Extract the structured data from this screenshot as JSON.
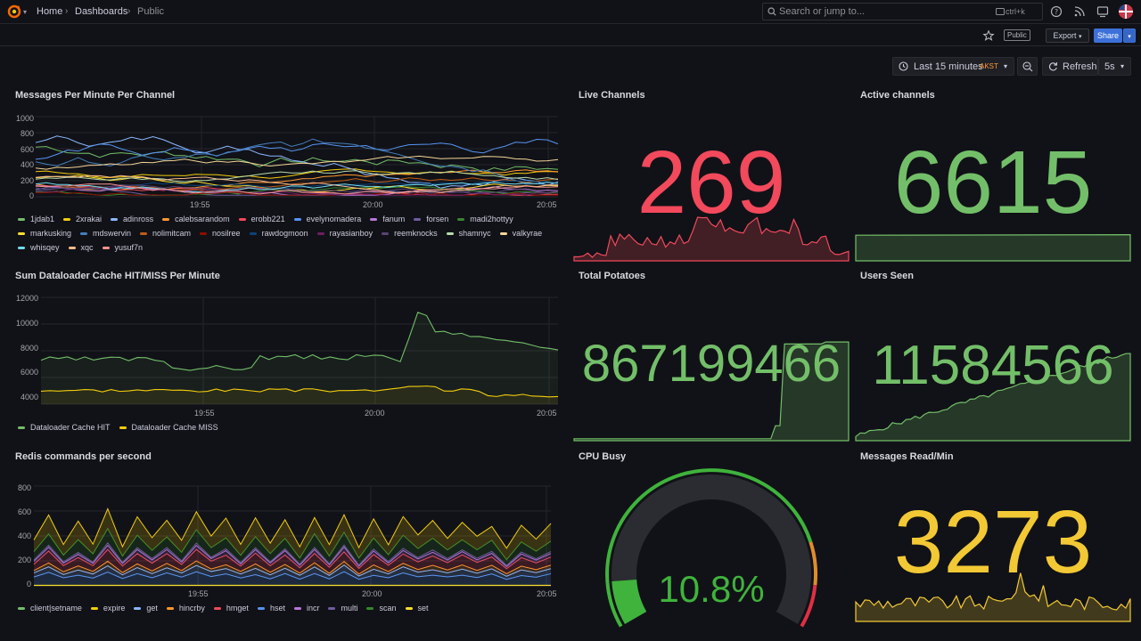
{
  "nav": {
    "crumbs": [
      "Home",
      "Dashboards",
      "Public"
    ],
    "search_placeholder": "Search or jump to...",
    "search_shortcut": "ctrl+k"
  },
  "toolbar": {
    "public_badge": "Public",
    "export_label": "Export",
    "share_label": "Share"
  },
  "time": {
    "range_label": "Last 15 minutes",
    "timezone": "AKST",
    "refresh_label": "Refresh",
    "refresh_interval": "5s"
  },
  "colors": {
    "red": "#f2495c",
    "green": "#73bf69",
    "yellow": "#f2cc0c",
    "orange": "#ff9830",
    "blue": "#5794f2"
  },
  "panels": {
    "messages": {
      "title": "Messages Per Minute Per Channel",
      "yticks": [
        "1000",
        "800",
        "600",
        "400",
        "200",
        "0"
      ],
      "xticks": [
        "19:55",
        "20:00",
        "20:05"
      ],
      "legend": [
        {
          "name": "1jdab1",
          "color": "#73bf69"
        },
        {
          "name": "2xrakai",
          "color": "#f2cc0c"
        },
        {
          "name": "adinross",
          "color": "#8ab8ff"
        },
        {
          "name": "calebsarandom",
          "color": "#ff9830"
        },
        {
          "name": "erobb221",
          "color": "#f2495c"
        },
        {
          "name": "evelynomadera",
          "color": "#5794f2"
        },
        {
          "name": "fanum",
          "color": "#b877d9"
        },
        {
          "name": "forsen",
          "color": "#705da0"
        },
        {
          "name": "madi2hottyy",
          "color": "#37872d"
        },
        {
          "name": "markusking",
          "color": "#fade2a"
        },
        {
          "name": "mdswervin",
          "color": "#447ebc"
        },
        {
          "name": "nolimitcam",
          "color": "#c15c17"
        },
        {
          "name": "nosilree",
          "color": "#890f02"
        },
        {
          "name": "rawdogmoon",
          "color": "#0a437c"
        },
        {
          "name": "rayasianboy",
          "color": "#6d1f62"
        },
        {
          "name": "reemknocks",
          "color": "#584477"
        },
        {
          "name": "shamnyc",
          "color": "#b7dbab"
        },
        {
          "name": "valkyrae",
          "color": "#f4d598"
        },
        {
          "name": "whisqey",
          "color": "#70dbed"
        },
        {
          "name": "xqc",
          "color": "#f9ba8f"
        },
        {
          "name": "yusuf7n",
          "color": "#f29191"
        }
      ]
    },
    "cache": {
      "title": "Sum Dataloader Cache HIT/MISS Per Minute",
      "yticks": [
        "12000",
        "10000",
        "8000",
        "6000",
        "4000"
      ],
      "xticks": [
        "19:55",
        "20:00",
        "20:05"
      ],
      "legend": [
        {
          "name": "Dataloader Cache HIT",
          "color": "#73bf69"
        },
        {
          "name": "Dataloader Cache MISS",
          "color": "#f2cc0c"
        }
      ]
    },
    "redis": {
      "title": "Redis commands per second",
      "yticks": [
        "800",
        "600",
        "400",
        "200",
        "0"
      ],
      "xticks": [
        "19:55",
        "20:00",
        "20:05"
      ],
      "legend": [
        {
          "name": "client|setname",
          "color": "#73bf69"
        },
        {
          "name": "expire",
          "color": "#f2cc0c"
        },
        {
          "name": "get",
          "color": "#8ab8ff"
        },
        {
          "name": "hincrby",
          "color": "#ff9830"
        },
        {
          "name": "hmget",
          "color": "#f2495c"
        },
        {
          "name": "hset",
          "color": "#5794f2"
        },
        {
          "name": "incr",
          "color": "#b877d9"
        },
        {
          "name": "multi",
          "color": "#705da0"
        },
        {
          "name": "scan",
          "color": "#37872d"
        },
        {
          "name": "set",
          "color": "#fade2a"
        }
      ]
    },
    "live": {
      "title": "Live Channels",
      "value": "269"
    },
    "active": {
      "title": "Active channels",
      "value": "6615"
    },
    "potatoes": {
      "title": "Total Potatoes",
      "value": "867199466"
    },
    "users": {
      "title": "Users Seen",
      "value": "11584566"
    },
    "cpu": {
      "title": "CPU Busy",
      "value": "10.8%",
      "percent": 10.8
    },
    "msgread": {
      "title": "Messages Read/Min",
      "value": "3273"
    }
  }
}
